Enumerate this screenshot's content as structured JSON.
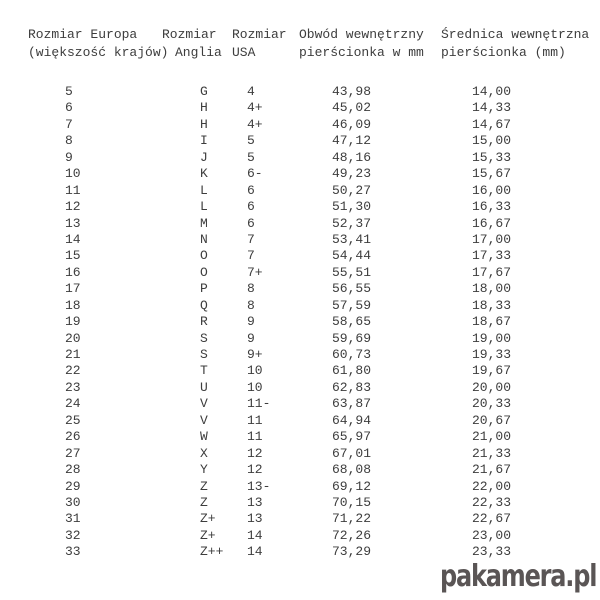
{
  "table": {
    "headers": [
      {
        "line1": "Rozmiar Europa",
        "line2": "(większość krajów)"
      },
      {
        "line1": "Rozmiar",
        "line2": "Anglia"
      },
      {
        "line1": "Rozmiar",
        "line2": "USA"
      },
      {
        "line1": "Obwód wewnętrzny",
        "line2": "pierścionka w mm"
      },
      {
        "line1": "Średnica wewnętrzna",
        "line2": "pierścionka (mm)"
      }
    ]
  },
  "chart_data": {
    "type": "table",
    "title": "",
    "columns": [
      "Rozmiar Europa (większość krajów)",
      "Rozmiar Anglia",
      "Rozmiar USA",
      "Obwód wewnętrzny pierścionka w mm",
      "Średnica wewnętrzna pierścionka (mm)"
    ],
    "rows": [
      [
        "5",
        "G",
        "4",
        "43,98",
        "14,00"
      ],
      [
        "6",
        "H",
        "4+",
        "45,02",
        "14,33"
      ],
      [
        "7",
        "H",
        "4+",
        "46,09",
        "14,67"
      ],
      [
        "8",
        "I",
        "5",
        "47,12",
        "15,00"
      ],
      [
        "9",
        "J",
        "5",
        "48,16",
        "15,33"
      ],
      [
        "10",
        "K",
        "6-",
        "49,23",
        "15,67"
      ],
      [
        "11",
        "L",
        "6",
        "50,27",
        "16,00"
      ],
      [
        "12",
        "L",
        "6",
        "51,30",
        "16,33"
      ],
      [
        "13",
        "M",
        "6",
        "52,37",
        "16,67"
      ],
      [
        "14",
        "N",
        "7",
        "53,41",
        "17,00"
      ],
      [
        "15",
        "O",
        "7",
        "54,44",
        "17,33"
      ],
      [
        "16",
        "O",
        "7+",
        "55,51",
        "17,67"
      ],
      [
        "17",
        "P",
        "8",
        "56,55",
        "18,00"
      ],
      [
        "18",
        "Q",
        "8",
        "57,59",
        "18,33"
      ],
      [
        "19",
        "R",
        "9",
        "58,65",
        "18,67"
      ],
      [
        "20",
        "S",
        "9",
        "59,69",
        "19,00"
      ],
      [
        "21",
        "S",
        "9+",
        "60,73",
        "19,33"
      ],
      [
        "22",
        "T",
        "10",
        "61,80",
        "19,67"
      ],
      [
        "23",
        "U",
        "10",
        "62,83",
        "20,00"
      ],
      [
        "24",
        "V",
        "11-",
        "63,87",
        "20,33"
      ],
      [
        "25",
        "V",
        "11",
        "64,94",
        "20,67"
      ],
      [
        "26",
        "W",
        "11",
        "65,97",
        "21,00"
      ],
      [
        "27",
        "X",
        "12",
        "67,01",
        "21,33"
      ],
      [
        "28",
        "Y",
        "12",
        "68,08",
        "21,67"
      ],
      [
        "29",
        "Z",
        "13-",
        "69,12",
        "22,00"
      ],
      [
        "30",
        "Z",
        "13",
        "70,15",
        "22,33"
      ],
      [
        "31",
        "Z+",
        "13",
        "71,22",
        "22,67"
      ],
      [
        "32",
        "Z+",
        "14",
        "72,26",
        "23,00"
      ],
      [
        "33",
        "Z++",
        "14",
        "73,29",
        "23,33"
      ]
    ]
  },
  "watermark": {
    "text": "pakamera.pl"
  },
  "colors": {
    "background": "#ffffff",
    "text": "#3d3d3d",
    "watermark": "#5a5555"
  }
}
